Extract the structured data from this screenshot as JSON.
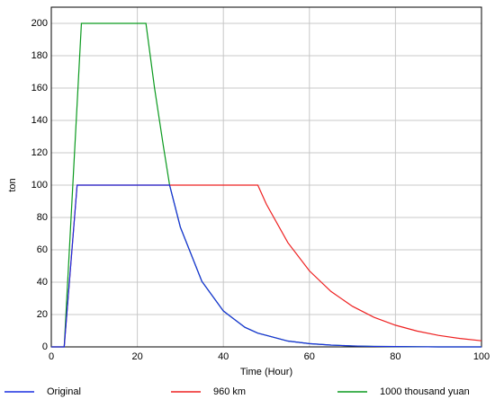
{
  "chart_data": {
    "type": "line",
    "x_label": "Time (Hour)",
    "y_label": "ton",
    "x": [
      0,
      3,
      6,
      7,
      10,
      15,
      20,
      22,
      24,
      26,
      27.5,
      30,
      35,
      40,
      45,
      48,
      50,
      55,
      60,
      65,
      70,
      75,
      80,
      85,
      90,
      95,
      100
    ],
    "series": [
      {
        "name": "1000 thousand yuan",
        "color": "#0a9a1e",
        "values": [
          0,
          0,
          150,
          200,
          200,
          200,
          200,
          200,
          160,
          125,
          100,
          74,
          40.5,
          22.2,
          12.1,
          8.5,
          7.1,
          3.6,
          2.0,
          1.1,
          0.6,
          0.3,
          0.2,
          0.1,
          0,
          0,
          0
        ]
      },
      {
        "name": "960 km",
        "color": "#ee2020",
        "values": [
          0,
          0,
          100,
          100,
          100,
          100,
          100,
          100,
          100,
          100,
          100,
          100,
          100,
          100,
          100,
          100,
          88.2,
          64.4,
          47,
          34.3,
          25.1,
          18.3,
          13.4,
          9.8,
          7.1,
          5.2,
          3.8
        ]
      },
      {
        "name": "Original",
        "color": "#1a2ee0",
        "values": [
          0,
          0,
          100,
          100,
          100,
          100,
          100,
          100,
          100,
          100,
          100,
          74,
          40.5,
          22.2,
          12.1,
          8.5,
          7.1,
          3.6,
          2.0,
          1.1,
          0.6,
          0.3,
          0.2,
          0.1,
          0,
          0,
          0
        ]
      }
    ],
    "legend_order": [
      2,
      1,
      0
    ],
    "xlim": [
      0,
      100
    ],
    "xticks": [
      0,
      20,
      40,
      60,
      80,
      100
    ],
    "ylim": [
      0,
      210
    ],
    "yticks": [
      0,
      20,
      40,
      60,
      80,
      100,
      120,
      140,
      160,
      180,
      200
    ],
    "grid": true
  }
}
